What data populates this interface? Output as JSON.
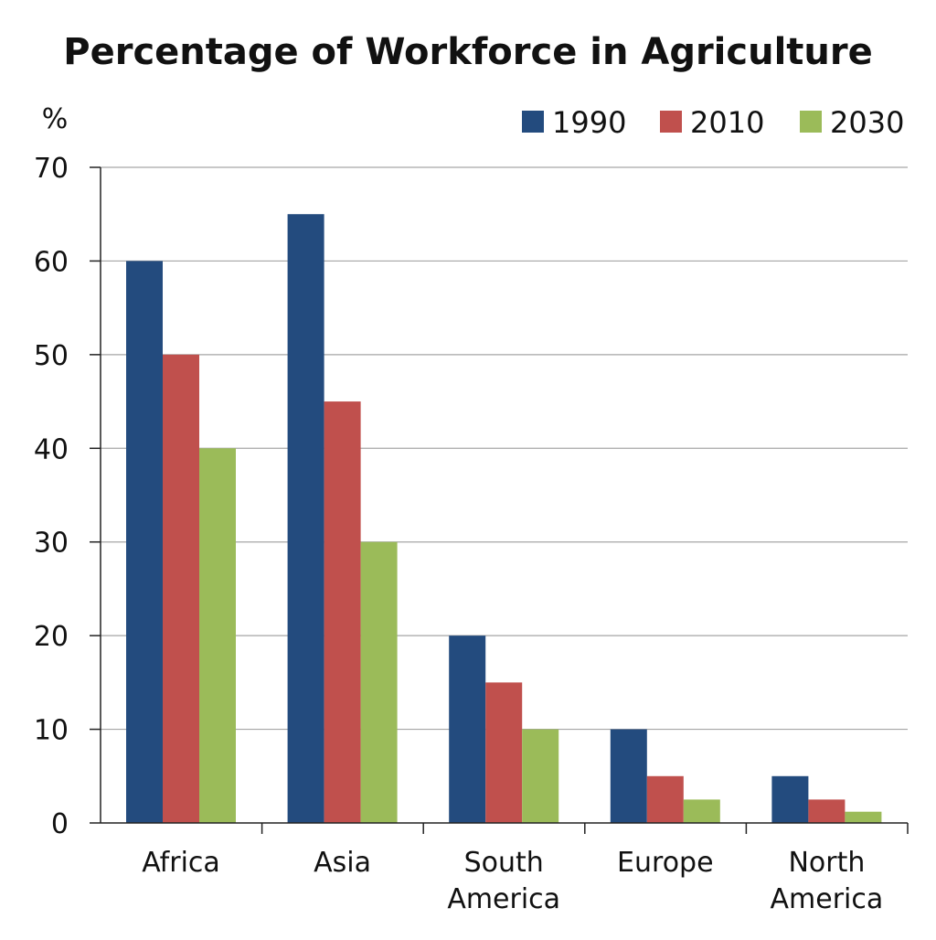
{
  "colors": {
    "series": [
      "#234b7e",
      "#c0504d",
      "#9bbb59"
    ],
    "grid": "#a6a6a6",
    "axis": "#222222"
  },
  "chart_data": {
    "type": "bar",
    "title": "Percentage of Workforce in Agriculture",
    "ylabel": "%",
    "xlabel": "",
    "categories": [
      [
        "Africa"
      ],
      [
        "Asia"
      ],
      [
        "South",
        "America"
      ],
      [
        "Europe"
      ],
      [
        "North",
        "America"
      ]
    ],
    "series": [
      {
        "name": "1990",
        "values": [
          60,
          65,
          20,
          10,
          5
        ]
      },
      {
        "name": "2010",
        "values": [
          50,
          45,
          15,
          5,
          2.5
        ]
      },
      {
        "name": "2030",
        "values": [
          40,
          30,
          10,
          2.5,
          1.2
        ]
      }
    ],
    "ylim": [
      0,
      70
    ],
    "yticks": [
      0,
      10,
      20,
      30,
      40,
      50,
      60,
      70
    ],
    "grid": true,
    "legend": "top-right"
  }
}
